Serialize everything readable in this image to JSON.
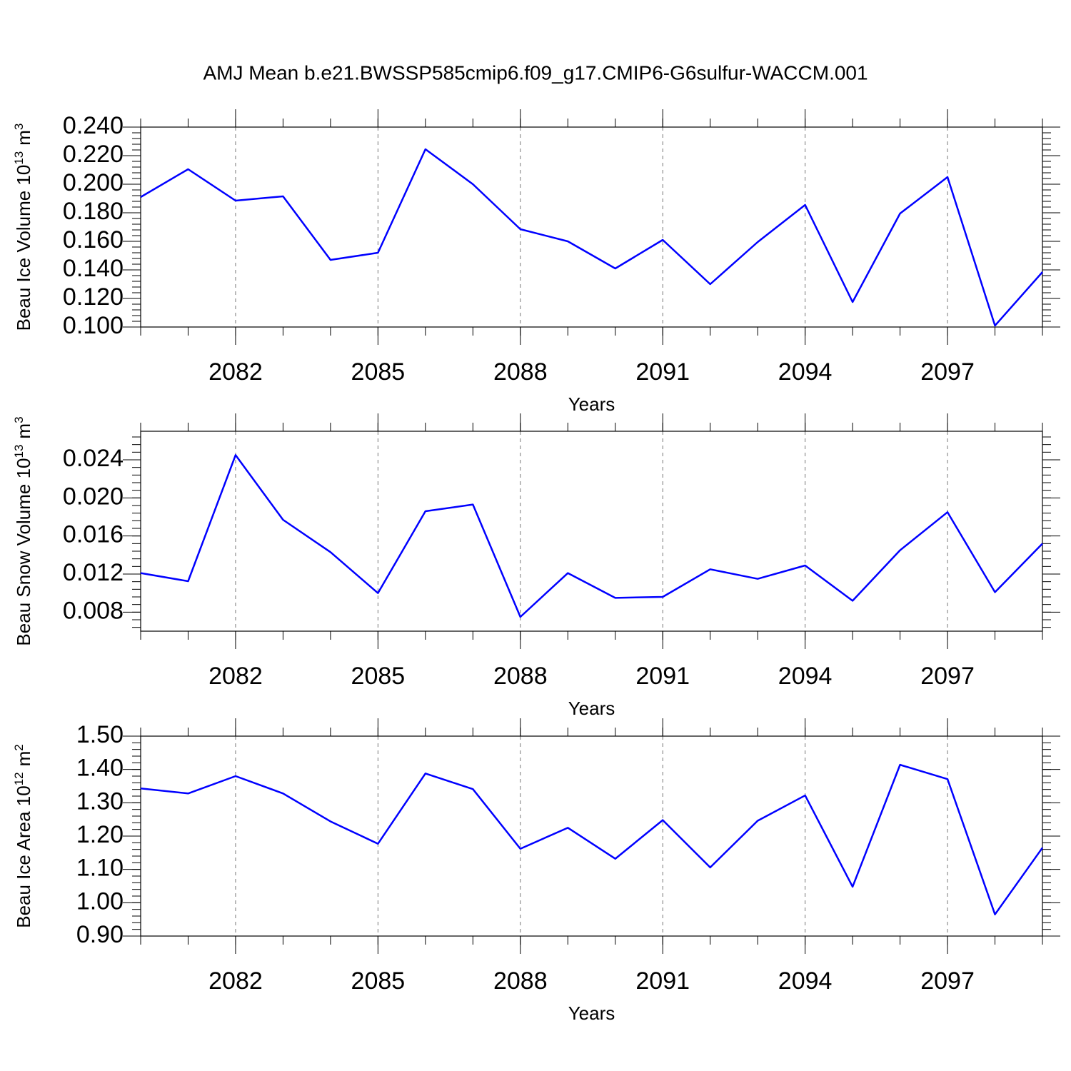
{
  "title": "AMJ Mean b.e21.BWSSP585cmip6.f09_g17.CMIP6-G6sulfur-WACCM.001",
  "chart_data": [
    {
      "type": "line",
      "ylabel": {
        "text": "Beau Ice Volume 10",
        "exponent": "13",
        "unit": "m",
        "unit_exponent": "3"
      },
      "xlabel": "Years",
      "x": [
        2080,
        2081,
        2082,
        2083,
        2084,
        2085,
        2086,
        2087,
        2088,
        2089,
        2090,
        2091,
        2092,
        2093,
        2094,
        2095,
        2096,
        2097,
        2098,
        2099
      ],
      "series": [
        {
          "color": "#0000ff",
          "values": [
            0.191,
            0.2105,
            0.1885,
            0.1915,
            0.147,
            0.152,
            0.2245,
            0.2,
            0.1685,
            0.16,
            0.141,
            0.161,
            0.13,
            0.1595,
            0.1855,
            0.1175,
            0.1795,
            0.205,
            0.101,
            0.1385
          ]
        }
      ],
      "xlim": [
        2080,
        2099
      ],
      "xticks": [
        2082,
        2085,
        2088,
        2091,
        2094,
        2097
      ],
      "ylim": [
        0.1,
        0.24
      ],
      "yticks": [
        {
          "value": 0.1,
          "label": "0.100"
        },
        {
          "value": 0.12,
          "label": "0.120"
        },
        {
          "value": 0.14,
          "label": "0.140"
        },
        {
          "value": 0.16,
          "label": "0.160"
        },
        {
          "value": 0.18,
          "label": "0.180"
        },
        {
          "value": 0.2,
          "label": "0.200"
        },
        {
          "value": 0.22,
          "label": "0.220"
        },
        {
          "value": 0.24,
          "label": "0.240"
        }
      ],
      "grid": "x"
    },
    {
      "type": "line",
      "ylabel": {
        "text": "Beau Snow Volume 10",
        "exponent": "13",
        "unit": "m",
        "unit_exponent": "3"
      },
      "xlabel": "Years",
      "x": [
        2080,
        2081,
        2082,
        2083,
        2084,
        2085,
        2086,
        2087,
        2088,
        2089,
        2090,
        2091,
        2092,
        2093,
        2094,
        2095,
        2096,
        2097,
        2098,
        2099
      ],
      "series": [
        {
          "color": "#0000ff",
          "values": [
            0.0121,
            0.01125,
            0.0245,
            0.0177,
            0.0143,
            0.01,
            0.0186,
            0.0193,
            0.0075,
            0.0121,
            0.0095,
            0.0096,
            0.0125,
            0.0115,
            0.0129,
            0.0092,
            0.0145,
            0.0185,
            0.0101,
            0.0152
          ]
        }
      ],
      "xlim": [
        2080,
        2099
      ],
      "xticks": [
        2082,
        2085,
        2088,
        2091,
        2094,
        2097
      ],
      "ylim": [
        0.006,
        0.027
      ],
      "yticks": [
        0.008,
        0.012,
        0.016,
        {
          "value": 0.02,
          "label": "0.020"
        },
        0.024
      ],
      "grid": "x"
    },
    {
      "type": "line",
      "ylabel": {
        "text": "Beau Ice Area 10",
        "exponent": "12",
        "unit": "m",
        "unit_exponent": "2"
      },
      "xlabel": "Years",
      "x": [
        2080,
        2081,
        2082,
        2083,
        2084,
        2085,
        2086,
        2087,
        2088,
        2089,
        2090,
        2091,
        2092,
        2093,
        2094,
        2095,
        2096,
        2097,
        2098,
        2099
      ],
      "series": [
        {
          "color": "#0000ff",
          "values": [
            1.343,
            1.328,
            1.38,
            1.328,
            1.244,
            1.177,
            1.388,
            1.341,
            1.162,
            1.225,
            1.132,
            1.248,
            1.106,
            1.246,
            1.322,
            1.048,
            1.414,
            1.371,
            0.965,
            1.165
          ]
        }
      ],
      "xlim": [
        2080,
        2099
      ],
      "xticks": [
        2082,
        2085,
        2088,
        2091,
        2094,
        2097
      ],
      "ylim": [
        0.9,
        1.5
      ],
      "yticks": [
        {
          "value": 0.9,
          "label": "0.90"
        },
        {
          "value": 1.0,
          "label": "1.00"
        },
        {
          "value": 1.1,
          "label": "1.10"
        },
        {
          "value": 1.2,
          "label": "1.20"
        },
        {
          "value": 1.3,
          "label": "1.30"
        },
        {
          "value": 1.4,
          "label": "1.40"
        },
        {
          "value": 1.5,
          "label": "1.50"
        }
      ],
      "grid": "x"
    }
  ]
}
